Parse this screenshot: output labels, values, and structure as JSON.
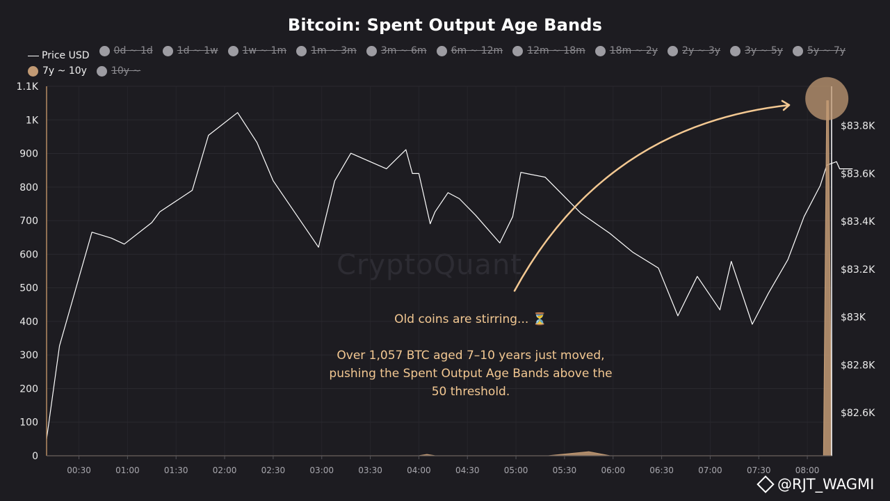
{
  "title": "Bitcoin: Spent Output Age Bands",
  "watermark": "CryptoQuant",
  "signature": "@RJT_WAGMI",
  "annotation": {
    "line1": "Old coins are stirring... ⏳",
    "line2": "Over 1,057 BTC aged 7–10 years just moved, pushing the Spent Output Age Bands above the 50 threshold."
  },
  "legend": [
    {
      "label": "Price USD",
      "kind": "line",
      "state": "active",
      "color": "#ffffff"
    },
    {
      "label": "0d ~ 1d",
      "kind": "dot",
      "state": "hidden",
      "color": "#9d9ca2"
    },
    {
      "label": "1d ~ 1w",
      "kind": "dot",
      "state": "hidden",
      "color": "#9d9ca2"
    },
    {
      "label": "1w ~ 1m",
      "kind": "dot",
      "state": "hidden",
      "color": "#9d9ca2"
    },
    {
      "label": "1m ~ 3m",
      "kind": "dot",
      "state": "hidden",
      "color": "#9d9ca2"
    },
    {
      "label": "3m ~ 6m",
      "kind": "dot",
      "state": "hidden",
      "color": "#9d9ca2"
    },
    {
      "label": "6m ~ 12m",
      "kind": "dot",
      "state": "hidden",
      "color": "#9d9ca2"
    },
    {
      "label": "12m ~ 18m",
      "kind": "dot",
      "state": "hidden",
      "color": "#9d9ca2"
    },
    {
      "label": "18m ~ 2y",
      "kind": "dot",
      "state": "hidden",
      "color": "#9d9ca2"
    },
    {
      "label": "2y ~ 3y",
      "kind": "dot",
      "state": "hidden",
      "color": "#9d9ca2"
    },
    {
      "label": "3y ~ 5y",
      "kind": "dot",
      "state": "hidden",
      "color": "#9d9ca2"
    },
    {
      "label": "5y ~ 7y",
      "kind": "dot",
      "state": "hidden",
      "color": "#9d9ca2"
    },
    {
      "label": "7y ~ 10y",
      "kind": "dot",
      "state": "active",
      "color": "#c29a74"
    },
    {
      "label": "10y ~",
      "kind": "dot",
      "state": "hidden",
      "color": "#9d9ca2"
    }
  ],
  "chart_data": {
    "type": "area",
    "x_ticks": [
      "00:30",
      "01:00",
      "01:30",
      "02:00",
      "02:30",
      "03:00",
      "03:30",
      "04:00",
      "04:30",
      "05:00",
      "05:30",
      "06:00",
      "06:30",
      "07:00",
      "07:30",
      "08:00"
    ],
    "y_left": {
      "ticks": [
        "0",
        "100",
        "200",
        "300",
        "400",
        "500",
        "600",
        "700",
        "800",
        "900",
        "1K",
        "1.1K"
      ],
      "range": [
        0,
        1100
      ]
    },
    "y_right": {
      "ticks": [
        "$82.6K",
        "$82.8K",
        "$83K",
        "$83.2K",
        "$83.4K",
        "$83.6K",
        "$83.8K"
      ],
      "range": [
        82420,
        83965
      ]
    },
    "x_range_minutes": [
      10,
      495
    ],
    "series": [
      {
        "name": "Price USD",
        "axis": "right",
        "color": "#ffffff",
        "x_minutes": [
          10,
          18,
          38,
          50,
          58,
          75,
          80,
          100,
          110,
          128,
          140,
          150,
          178,
          188,
          198,
          220,
          232,
          236,
          240,
          247,
          250,
          258,
          265,
          275,
          290,
          298,
          303,
          308,
          318,
          340,
          358,
          372,
          388,
          400,
          412,
          426,
          433,
          446,
          456,
          468,
          478,
          488,
          492,
          498,
          500,
          508
        ],
        "values": [
          82490,
          82880,
          83355,
          83330,
          83305,
          83395,
          83440,
          83530,
          83760,
          83855,
          83730,
          83570,
          83292,
          83570,
          83685,
          83620,
          83700,
          83600,
          83600,
          83390,
          83440,
          83520,
          83495,
          83426,
          83310,
          83420,
          83605,
          83598,
          83585,
          83435,
          83350,
          83272,
          83205,
          83005,
          83170,
          83030,
          83233,
          82970,
          83100,
          83240,
          83420,
          83550,
          83635,
          83650,
          83620,
          83620
        ]
      },
      {
        "name": "7y ~ 10y",
        "axis": "left",
        "color": "#c29a74",
        "x_minutes": [
          10,
          190,
          240,
          245,
          250,
          320,
          345,
          358,
          365,
          480,
          490,
          492,
          493,
          495
        ],
        "values": [
          0,
          0,
          0,
          4,
          0,
          0,
          12,
          0,
          0,
          0,
          0,
          1057,
          1057,
          0
        ]
      }
    ]
  }
}
